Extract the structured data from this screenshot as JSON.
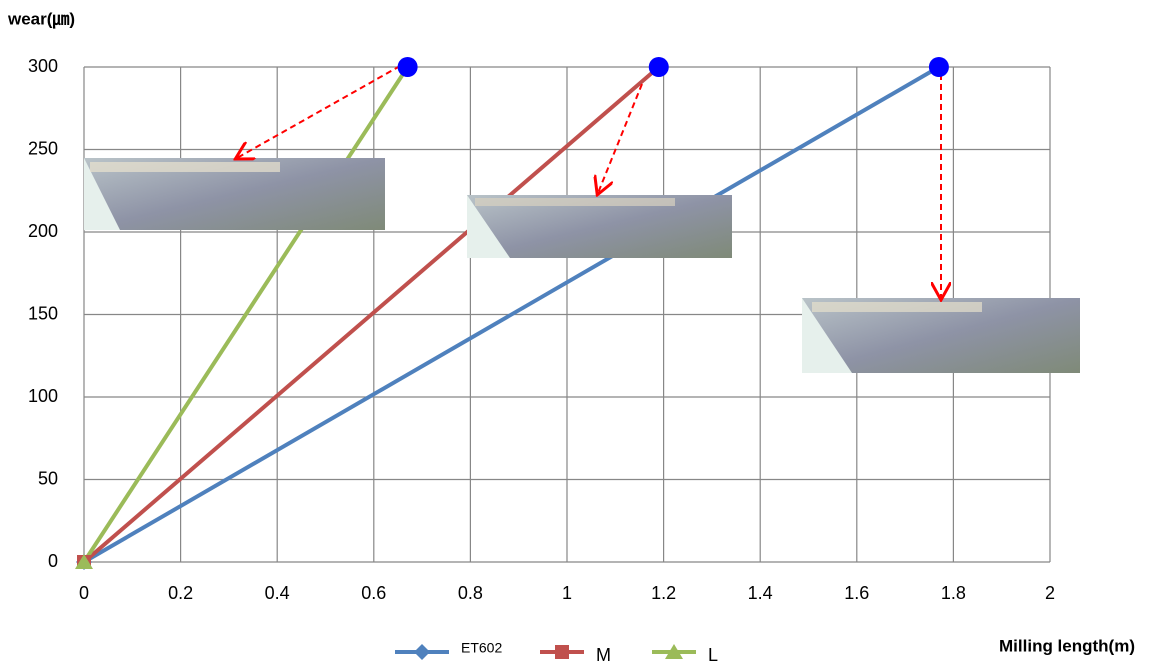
{
  "chart_data": {
    "type": "line",
    "y_label": "wear(㎛)",
    "x_label": "Milling length(m)",
    "series": [
      {
        "name": "ET602",
        "color": "#4f81bd",
        "marker": "diamond",
        "x": [
          0,
          1.77
        ],
        "values": [
          0,
          300
        ]
      },
      {
        "name": "M",
        "color": "#c0504d",
        "marker": "square",
        "x": [
          0,
          1.19
        ],
        "values": [
          0,
          300
        ]
      },
      {
        "name": "L",
        "color": "#9bbb59",
        "marker": "triangle",
        "x": [
          0,
          0.67
        ],
        "values": [
          0,
          300
        ]
      }
    ],
    "xlim": [
      0,
      2
    ],
    "xticks": [
      0,
      0.2,
      0.4,
      0.6,
      0.8,
      1,
      1.2,
      1.4,
      1.6,
      1.8,
      2
    ],
    "ylim": [
      0,
      300
    ],
    "yticks": [
      0,
      50,
      100,
      150,
      200,
      250,
      300
    ],
    "grid": true
  }
}
